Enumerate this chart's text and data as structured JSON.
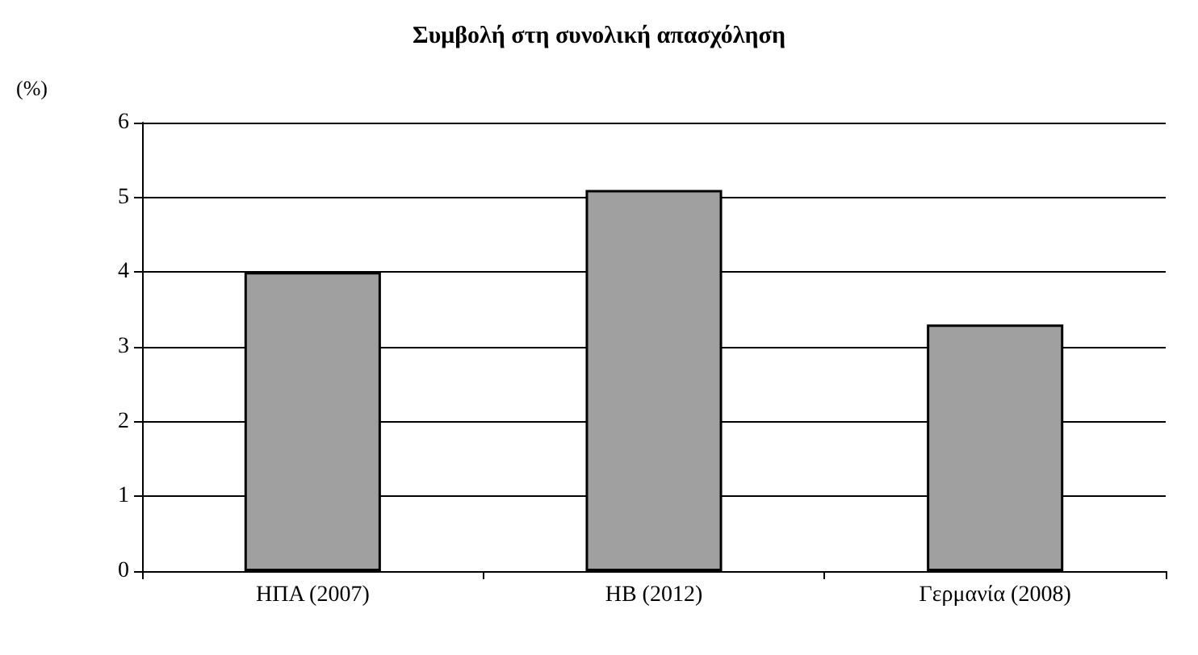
{
  "chart_data": {
    "type": "bar",
    "title": "Συμβολή στη συνολική απασχόληση",
    "ylabel": "(%)",
    "categories": [
      "ΗΠΑ (2007)",
      "ΗΒ (2012)",
      "Γερμανία (2008)"
    ],
    "values": [
      4,
      5.1,
      3.3
    ],
    "color": "#a0a0a0",
    "ylim": [
      0,
      6
    ],
    "yticks": [
      0,
      1,
      2,
      3,
      4,
      5,
      6
    ],
    "grid": "y"
  }
}
